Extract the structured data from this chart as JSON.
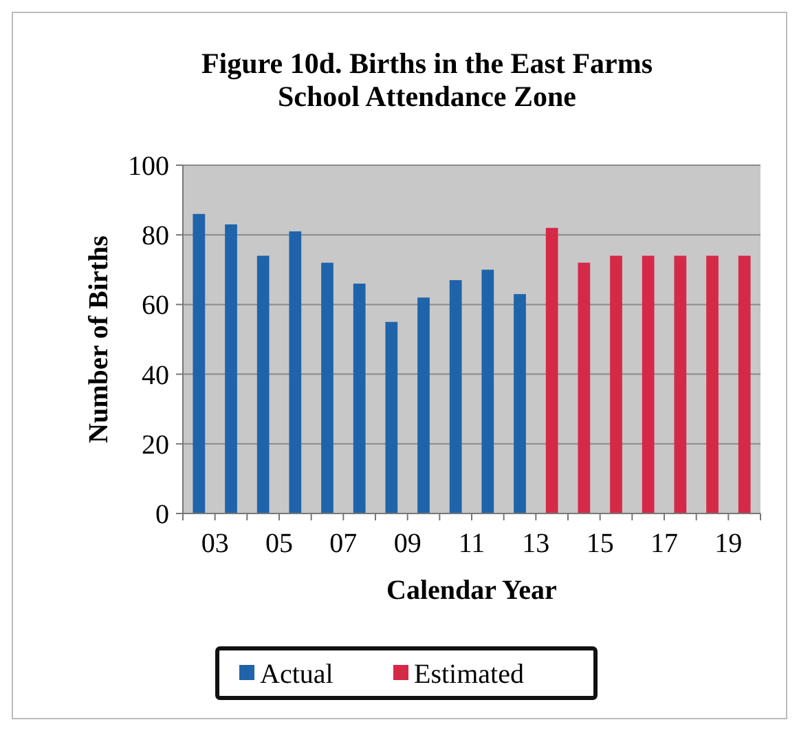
{
  "chart_data": {
    "type": "bar",
    "title": "Figure 10d.  Births in the East Farms School Attendance Zone",
    "xlabel": "Calendar Year",
    "ylabel": "Number of Births",
    "categories": [
      "03",
      null,
      "05",
      null,
      "07",
      null,
      "09",
      null,
      "11",
      null,
      "13",
      null,
      "15",
      null,
      "17",
      null,
      "19",
      null
    ],
    "series": [
      {
        "name": "Actual",
        "color": "#1f64aa",
        "values": [
          86,
          83,
          74,
          81,
          72,
          66,
          55,
          62,
          67,
          70,
          63,
          null,
          null,
          null,
          null,
          null,
          null,
          null
        ]
      },
      {
        "name": "Estimated",
        "color": "#d42a48",
        "values": [
          null,
          null,
          null,
          null,
          null,
          null,
          null,
          null,
          null,
          null,
          null,
          82,
          72,
          74,
          74,
          74,
          74,
          74
        ]
      }
    ],
    "ylim": [
      0,
      100
    ],
    "yticks": [
      0,
      20,
      40,
      60,
      80,
      100
    ],
    "grid": "y",
    "legend": "bottom"
  }
}
